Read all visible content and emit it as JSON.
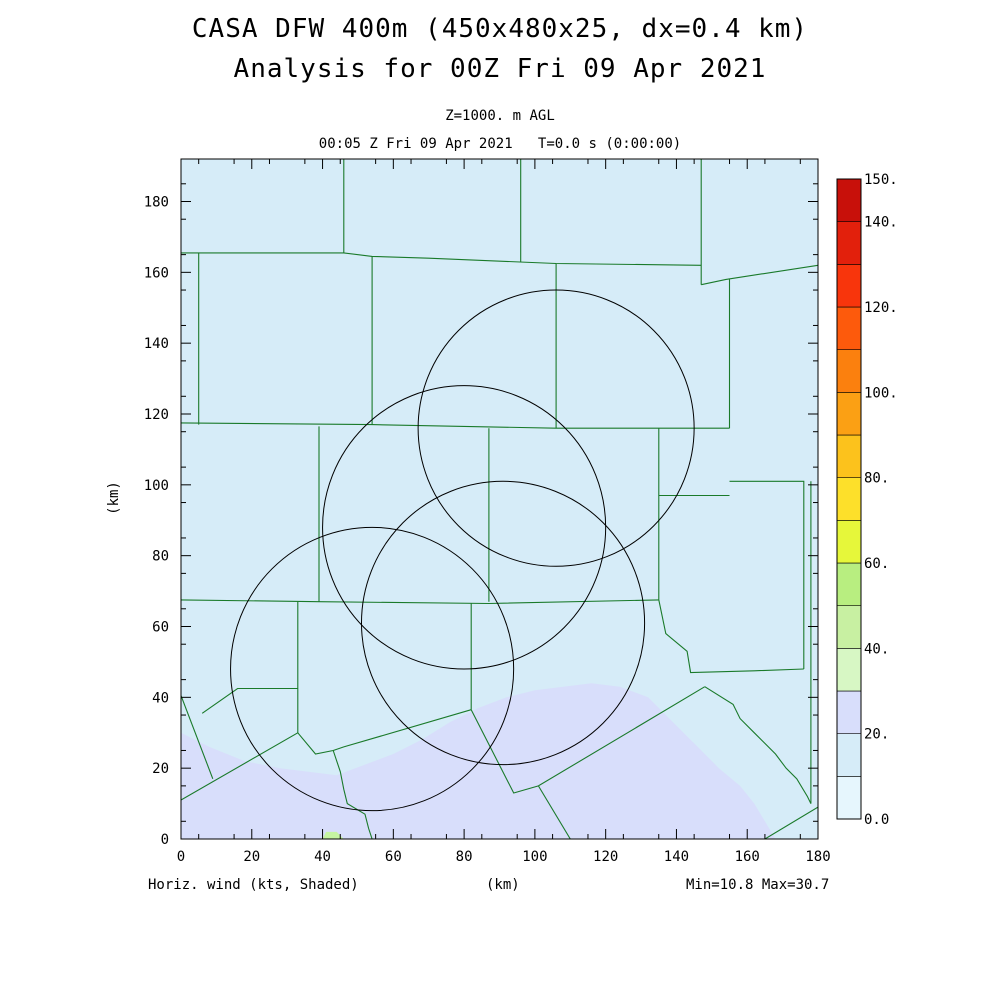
{
  "title": {
    "line1": "CASA DFW 400m (450x480x25, dx=0.4 km)",
    "line2": "Analysis for 00Z Fri 09 Apr 2021"
  },
  "subtitle": {
    "level": "Z=1000. m AGL",
    "time": "00:05 Z Fri 09 Apr 2021   T=0.0 s (0:00:00)"
  },
  "footer": {
    "variable": "Horiz. wind (kts, Shaded)",
    "xunit": "(km)",
    "minmax": "Min=10.8 Max=30.7"
  },
  "colors": {
    "background": "#d6ecf8",
    "shade_low": "#d8defb",
    "shade_green": "#c6f5a2",
    "county_lines": "#1a7a2a",
    "radar_rings": "#000000"
  },
  "chart_data": {
    "type": "heatmap",
    "variable": "Horizontal wind speed",
    "units": "kts",
    "xlabel": "(km)",
    "ylabel": "(km)",
    "xlim": [
      0,
      180
    ],
    "ylim": [
      0,
      192
    ],
    "x_ticks": [
      "0",
      "20",
      "40",
      "60",
      "80",
      "100",
      "120",
      "140",
      "160",
      "180"
    ],
    "y_ticks": [
      "0",
      "20",
      "40",
      "60",
      "80",
      "100",
      "120",
      "140",
      "160",
      "180"
    ],
    "min": 10.8,
    "max": 30.7,
    "colorbar": {
      "labels": [
        "0.0",
        "20.",
        "40.",
        "60.",
        "80.",
        "100.",
        "120.",
        "140.",
        "150."
      ],
      "label_values": [
        0,
        20,
        40,
        60,
        80,
        100,
        120,
        140,
        150
      ],
      "interval": 10,
      "colors": [
        "#e6f6fd",
        "#d6ecf8",
        "#d8defb",
        "#d7f7c4",
        "#c8f0a2",
        "#b8ee80",
        "#e6f73a",
        "#fde02a",
        "#fcc21c",
        "#fba014",
        "#fb800e",
        "#fd5a0c",
        "#f8350c",
        "#e2200c",
        "#c8100a"
      ]
    },
    "radar_rings": [
      {
        "center": [
          106,
          116
        ],
        "radius": 39
      },
      {
        "center": [
          80,
          88
        ],
        "radius": 40
      },
      {
        "center": [
          91,
          61
        ],
        "radius": 40
      },
      {
        "center": [
          54,
          48
        ],
        "radius": 40
      }
    ],
    "shaded_regions": [
      {
        "range": "20-30 kts",
        "polygon": [
          [
            0,
            0
          ],
          [
            0,
            30
          ],
          [
            8,
            26
          ],
          [
            18,
            22
          ],
          [
            28,
            20
          ],
          [
            36,
            19
          ],
          [
            44,
            18
          ],
          [
            52,
            21
          ],
          [
            60,
            24
          ],
          [
            68,
            28
          ],
          [
            76,
            33
          ],
          [
            84,
            37
          ],
          [
            92,
            40
          ],
          [
            100,
            42
          ],
          [
            108,
            43
          ],
          [
            116,
            44
          ],
          [
            124,
            43
          ],
          [
            132,
            40
          ],
          [
            138,
            34
          ],
          [
            146,
            26
          ],
          [
            152,
            20
          ],
          [
            158,
            15
          ],
          [
            162,
            10
          ],
          [
            165,
            5
          ],
          [
            168,
            0
          ]
        ]
      },
      {
        "range": "30-40 kts",
        "polygon": [
          [
            40,
            0
          ],
          [
            41,
            2
          ],
          [
            44,
            2
          ],
          [
            46,
            0
          ]
        ]
      }
    ],
    "county_lines": [
      [
        [
          0,
          165.5
        ],
        [
          46,
          165.5
        ],
        [
          54,
          164.5
        ],
        [
          70,
          164
        ],
        [
          106,
          162.5
        ],
        [
          147,
          162
        ]
      ],
      [
        [
          5,
          165.5
        ],
        [
          5,
          117
        ]
      ],
      [
        [
          46,
          192
        ],
        [
          46,
          165.5
        ]
      ],
      [
        [
          54,
          164.5
        ],
        [
          54,
          117
        ]
      ],
      [
        [
          96,
          192
        ],
        [
          96,
          163
        ]
      ],
      [
        [
          106,
          162.5
        ],
        [
          106,
          116
        ]
      ],
      [
        [
          147,
          192
        ],
        [
          147,
          156.5
        ]
      ],
      [
        [
          147,
          156.5
        ],
        [
          154,
          158
        ],
        [
          180,
          162
        ]
      ],
      [
        [
          155,
          158
        ],
        [
          155,
          116
        ]
      ],
      [
        [
          0,
          117.5
        ],
        [
          54,
          117
        ],
        [
          106,
          116
        ],
        [
          155,
          116
        ]
      ],
      [
        [
          39,
          116.5
        ],
        [
          39,
          67
        ]
      ],
      [
        [
          87,
          116
        ],
        [
          87,
          67
        ]
      ],
      [
        [
          135,
          116
        ],
        [
          135,
          67.5
        ]
      ],
      [
        [
          135,
          97
        ],
        [
          155,
          97
        ]
      ],
      [
        [
          155,
          101
        ],
        [
          176,
          101
        ],
        [
          176,
          48
        ]
      ],
      [
        [
          178,
          101
        ],
        [
          178,
          10
        ]
      ],
      [
        [
          0,
          67.5
        ],
        [
          39,
          67
        ],
        [
          87,
          66.5
        ],
        [
          135,
          67.5
        ]
      ],
      [
        [
          33,
          67
        ],
        [
          33,
          30
        ]
      ],
      [
        [
          82,
          66.5
        ],
        [
          82,
          36.5
        ]
      ],
      [
        [
          0,
          40.5
        ],
        [
          9,
          17
        ]
      ],
      [
        [
          6,
          35.5
        ],
        [
          16,
          42.5
        ],
        [
          33,
          42.5
        ]
      ],
      [
        [
          0,
          11
        ],
        [
          33,
          30
        ],
        [
          38,
          24
        ],
        [
          43,
          25
        ],
        [
          46,
          26
        ],
        [
          82,
          36.5
        ]
      ],
      [
        [
          43,
          25
        ],
        [
          45,
          19
        ],
        [
          46,
          14
        ],
        [
          47,
          10
        ],
        [
          52,
          7
        ],
        [
          53,
          3
        ],
        [
          54,
          0
        ]
      ],
      [
        [
          82,
          36.5
        ],
        [
          94,
          13
        ],
        [
          101,
          15
        ],
        [
          148,
          43
        ]
      ],
      [
        [
          135,
          67.5
        ],
        [
          137,
          58
        ],
        [
          143,
          53
        ],
        [
          144,
          47
        ],
        [
          162,
          47.5
        ],
        [
          176,
          48
        ]
      ],
      [
        [
          148,
          43
        ],
        [
          156,
          38
        ],
        [
          158,
          34
        ],
        [
          162,
          30
        ],
        [
          165,
          27
        ],
        [
          168,
          24
        ],
        [
          171,
          20
        ],
        [
          174,
          17
        ],
        [
          177,
          12
        ],
        [
          178,
          10
        ]
      ],
      [
        [
          101,
          15
        ],
        [
          110,
          0
        ]
      ],
      [
        [
          165,
          0
        ],
        [
          180,
          9
        ]
      ]
    ]
  }
}
